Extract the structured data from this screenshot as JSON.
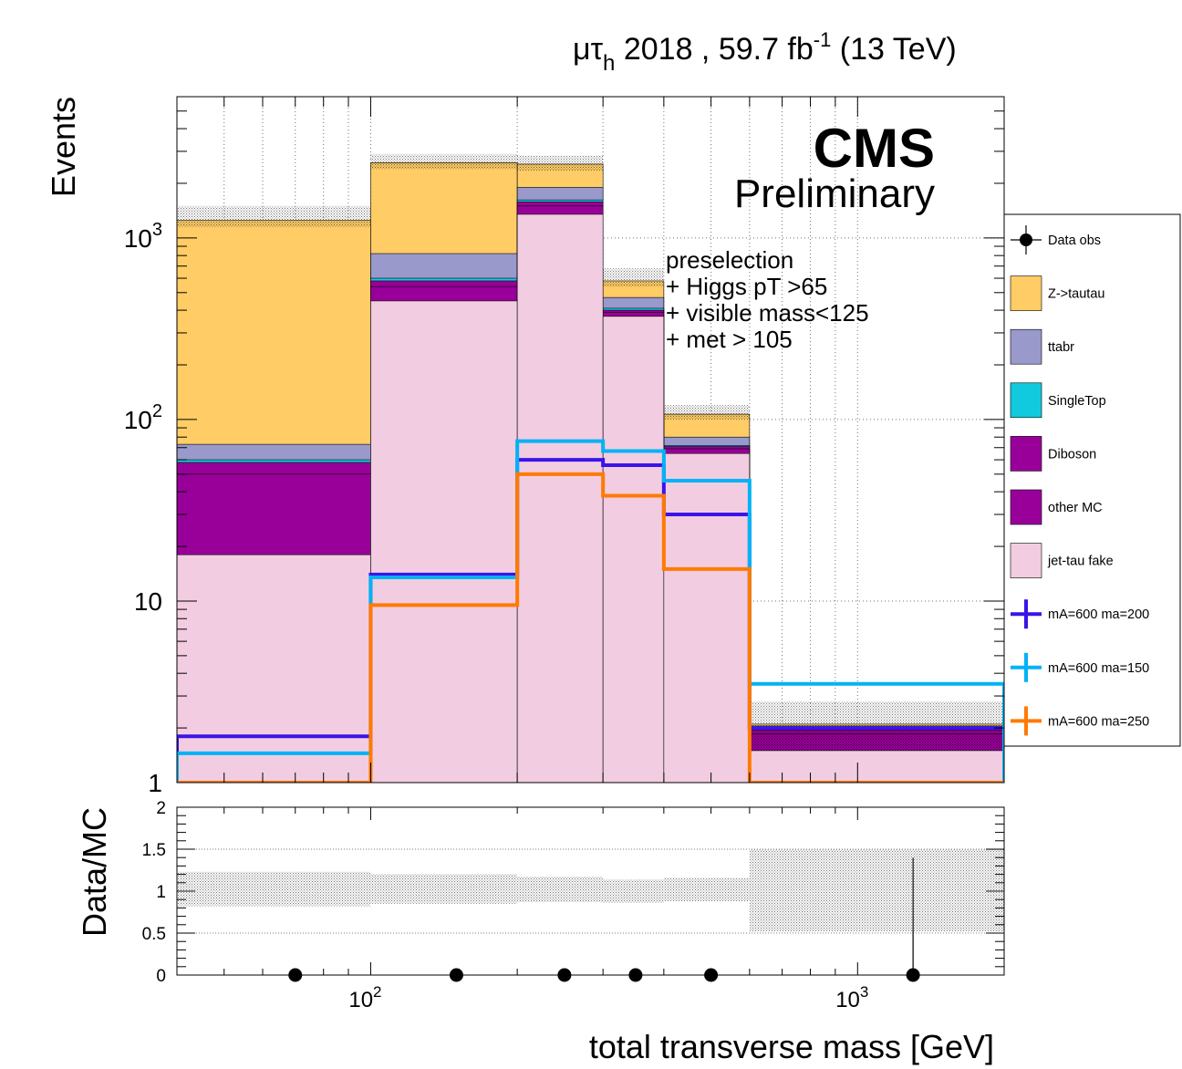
{
  "header": {
    "lumi_label": "μτ",
    "lumi_sub": "h",
    "lumi_rest": " 2018 , 59.7 fb",
    "lumi_sup": "-1",
    "lumi_tail": " (13 TeV)",
    "cms": "CMS",
    "preliminary": "Preliminary"
  },
  "selection_text": [
    "preselection",
    "+ Higgs pT >65",
    "+ visible mass<125",
    "+ met > 105"
  ],
  "colors": {
    "ztautau": "#ffcc66",
    "ttbar": "#9999cc",
    "singletop": "#12cadd",
    "diboson": "#990099",
    "othermc": "#990099",
    "jetfake": "#f2cce1",
    "sig200": "#3a14e8",
    "sig150": "#00b3f5",
    "sig250": "#ff7a00"
  },
  "chart_data": [
    {
      "type": "stacked-histogram",
      "xlabel": "total transverse mass [GeV]",
      "ylabel": "Events",
      "log_x": true,
      "log_y": true,
      "xlim": [
        40,
        2000
      ],
      "ylim": [
        1,
        6000
      ],
      "y_tick_labels": [
        {
          "value": 1,
          "label": "1"
        },
        {
          "value": 10,
          "label": "10"
        },
        {
          "value": 100,
          "label": "10",
          "sup": "2"
        },
        {
          "value": 1000,
          "label": "10",
          "sup": "3"
        }
      ],
      "bin_edges": [
        40,
        100,
        200,
        300,
        400,
        600,
        2000
      ],
      "stack_cumulative": [
        {
          "name": "jet-tau fake",
          "key": "jetfake",
          "values": [
            18,
            450,
            1350,
            370,
            65,
            1.5
          ]
        },
        {
          "name": "other MC",
          "key": "othermc",
          "values": [
            50,
            540,
            1500,
            390,
            69,
            1.85
          ]
        },
        {
          "name": "Diboson",
          "key": "diboson",
          "values": [
            58,
            580,
            1580,
            400,
            71,
            1.95
          ]
        },
        {
          "name": "SingleTop",
          "key": "singletop",
          "values": [
            60,
            600,
            1620,
            410,
            72,
            1.97
          ]
        },
        {
          "name": "ttabr",
          "key": "ttbar",
          "values": [
            73,
            820,
            1900,
            470,
            80,
            2.05
          ]
        },
        {
          "name": "Z->tautau",
          "key": "ztautau",
          "values": [
            1250,
            2600,
            2550,
            580,
            107,
            2.1
          ]
        }
      ],
      "uncertainty_band": {
        "low": [
          1150,
          2400,
          2350,
          540,
          100,
          1.5
        ],
        "high": [
          1500,
          2900,
          2850,
          680,
          120,
          2.8
        ]
      },
      "signals": [
        {
          "name": "mA=600 ma=200",
          "key": "sig200",
          "values": [
            1.8,
            14,
            60,
            56,
            30,
            2.0
          ]
        },
        {
          "name": "mA=600 ma=150",
          "key": "sig150",
          "values": [
            1.45,
            13.5,
            76,
            67,
            46,
            3.5
          ]
        },
        {
          "name": "mA=600 ma=250",
          "key": "sig250",
          "values": [
            1,
            9.5,
            50,
            38,
            15,
            1
          ]
        }
      ],
      "legend_position": "right",
      "legend": [
        {
          "label": "Data obs",
          "kind": "marker"
        },
        {
          "label": "Z->tautau",
          "kind": "box",
          "key": "ztautau"
        },
        {
          "label": "ttabr",
          "kind": "box",
          "key": "ttbar"
        },
        {
          "label": "SingleTop",
          "kind": "box",
          "key": "singletop"
        },
        {
          "label": "Diboson",
          "kind": "box",
          "key": "diboson"
        },
        {
          "label": "other MC",
          "kind": "box",
          "key": "othermc"
        },
        {
          "label": "jet-tau fake",
          "kind": "box",
          "key": "jetfake"
        },
        {
          "label": "mA=600 ma=200",
          "kind": "line",
          "key": "sig200"
        },
        {
          "label": "mA=600 ma=150",
          "kind": "line",
          "key": "sig150"
        },
        {
          "label": "mA=600 ma=250",
          "kind": "line",
          "key": "sig250"
        }
      ]
    },
    {
      "type": "ratio",
      "xlabel": "total transverse mass [GeV]",
      "ylabel": "Data/MC",
      "ylim": [
        0,
        2
      ],
      "y_ticks": [
        "0",
        "0.5",
        "1",
        "1.5",
        "2"
      ],
      "x_tick_labels": [
        {
          "value": 100,
          "label": "10",
          "sup": "2"
        },
        {
          "value": 1000,
          "label": "10",
          "sup": "3"
        }
      ],
      "unc_bins": [
        {
          "x0": 40,
          "x1": 100,
          "lo": 0.82,
          "hi": 1.23
        },
        {
          "x0": 100,
          "x1": 200,
          "lo": 0.85,
          "hi": 1.2
        },
        {
          "x0": 200,
          "x1": 300,
          "lo": 0.87,
          "hi": 1.17
        },
        {
          "x0": 300,
          "x1": 400,
          "lo": 0.86,
          "hi": 1.14
        },
        {
          "x0": 400,
          "x1": 600,
          "lo": 0.88,
          "hi": 1.16
        },
        {
          "x0": 600,
          "x1": 2000,
          "lo": 0.52,
          "hi": 1.5
        }
      ],
      "points": [
        {
          "x": 70,
          "y": 0
        },
        {
          "x": 150,
          "y": 0
        },
        {
          "x": 250,
          "y": 0
        },
        {
          "x": 350,
          "y": 0
        },
        {
          "x": 500,
          "y": 0
        },
        {
          "x": 1300,
          "y": 0,
          "err_hi": 1.4
        }
      ]
    }
  ]
}
